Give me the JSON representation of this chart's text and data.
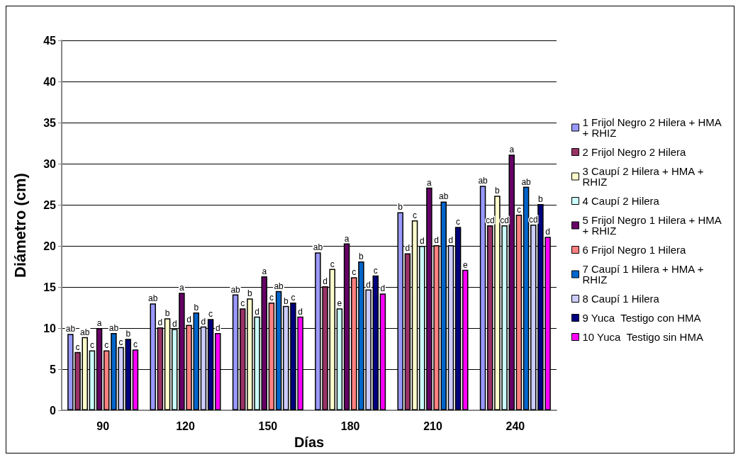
{
  "chart_data": {
    "type": "bar",
    "xlabel": "Días",
    "ylabel": "Diámetro (cm)",
    "categories": [
      "90",
      "120",
      "150",
      "180",
      "210",
      "240"
    ],
    "ylim": [
      0,
      45
    ],
    "yticks": [
      0,
      5,
      10,
      15,
      20,
      25,
      30,
      35,
      40,
      45
    ],
    "grid": "y",
    "legend": "right",
    "series": [
      {
        "name": "1 Frijol Negro 2 Hilera + HMA + RHIZ",
        "color": "#9999ff",
        "values": [
          9.3,
          13.0,
          14.1,
          19.2,
          24.1,
          27.3
        ],
        "value_labels": [
          "ab",
          "ab",
          "ab",
          "ab",
          "b",
          "ab"
        ]
      },
      {
        "name": "2 Frijol Negro 2 Hilera",
        "color": "#993366",
        "values": [
          7.1,
          10.1,
          12.4,
          15.1,
          19.1,
          22.5
        ],
        "value_labels": [
          "c",
          "d",
          "c",
          "d",
          "d",
          "cd"
        ]
      },
      {
        "name": "3 Caupí 2 Hilera + HMA + RHIZ",
        "color": "#ffffcc",
        "values": [
          8.9,
          11.2,
          13.6,
          17.2,
          23.1,
          26.1
        ],
        "value_labels": [
          "ab",
          "b",
          "b",
          "c",
          "c",
          "b"
        ]
      },
      {
        "name": "4 Caupí 2 Hilera",
        "color": "#ccffff",
        "values": [
          7.3,
          9.9,
          11.4,
          12.4,
          20.0,
          22.5
        ],
        "value_labels": [
          "c",
          "d",
          "d",
          "e",
          "d",
          "cd"
        ]
      },
      {
        "name": "5 Frijol Negro 1 Hilera + HMA + RHIZ",
        "color": "#660066",
        "values": [
          10.0,
          14.3,
          16.3,
          20.3,
          27.1,
          31.1
        ],
        "value_labels": [
          "a",
          "a",
          "a",
          "a",
          "a",
          "a"
        ]
      },
      {
        "name": "6 Frijol Negro 1 Hilera",
        "color": "#ff8080",
        "values": [
          7.3,
          10.4,
          13.1,
          16.2,
          20.1,
          23.8
        ],
        "value_labels": [
          "c",
          "d",
          "c",
          "c",
          "d",
          "c"
        ]
      },
      {
        "name": "7 Caupí 1 Hilera + HMA + RHIZ",
        "color": "#0066cc",
        "values": [
          9.4,
          11.9,
          14.5,
          18.1,
          25.4,
          27.2
        ],
        "value_labels": [
          "ab",
          "b",
          "ab",
          "b",
          "ab",
          "ab"
        ]
      },
      {
        "name": "8 Caupí 1 Hilera",
        "color": "#ccccff",
        "values": [
          7.7,
          10.2,
          12.7,
          14.7,
          20.1,
          22.6
        ],
        "value_labels": [
          "c",
          "d",
          "b",
          "d",
          "d",
          "cd"
        ]
      },
      {
        "name": "9 Yuca  Testigo con HMA",
        "color": "#000080",
        "values": [
          8.7,
          11.1,
          13.1,
          16.4,
          22.3,
          25.1
        ],
        "value_labels": [
          "b",
          "c",
          "c",
          "c",
          "c",
          "b"
        ]
      },
      {
        "name": "10 Yuca  Testigo sin HMA",
        "color": "#ff00ff",
        "values": [
          7.4,
          9.4,
          11.4,
          14.2,
          17.1,
          21.1
        ],
        "value_labels": [
          "c",
          "d",
          "d",
          "d",
          "e",
          "d"
        ]
      }
    ]
  }
}
